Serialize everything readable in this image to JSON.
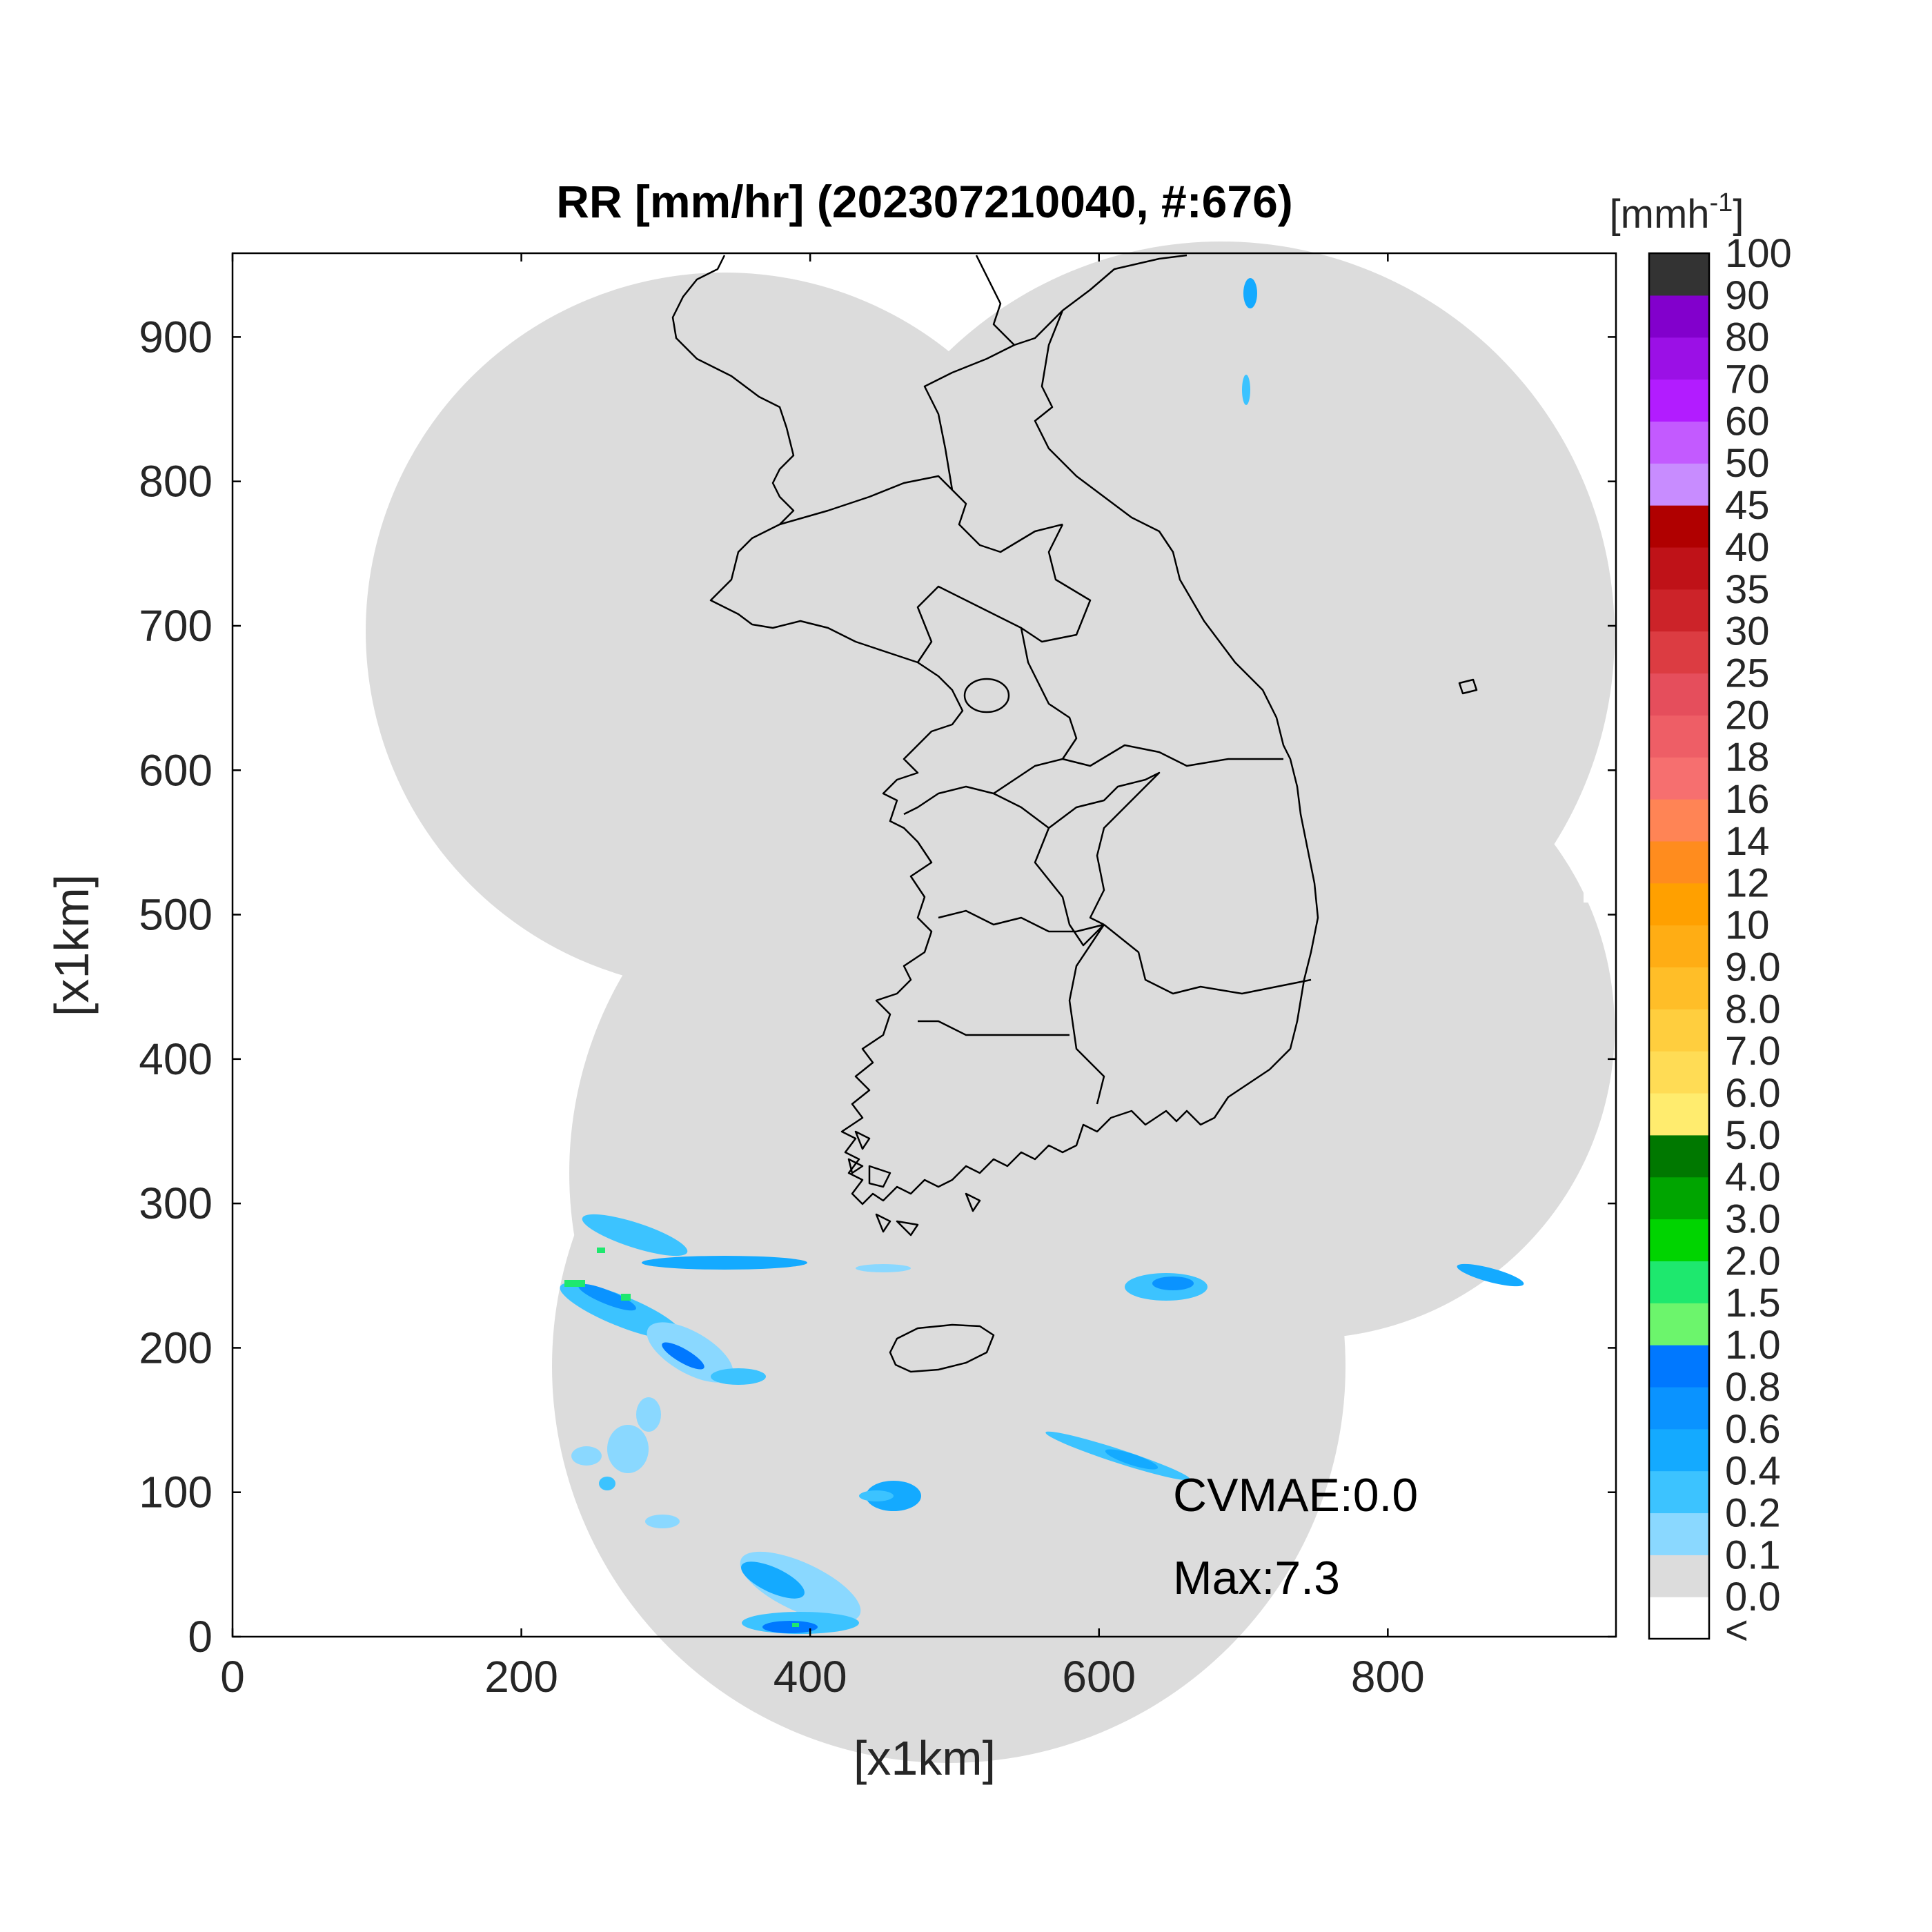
{
  "title": "RR [mm/hr] (202307210040, #:676)",
  "xlabel": "[x1km]",
  "ylabel": "[x1km]",
  "xticks": [
    "0",
    "200",
    "400",
    "600",
    "800"
  ],
  "yticks": [
    "0",
    "100",
    "200",
    "300",
    "400",
    "500",
    "600",
    "700",
    "800",
    "900"
  ],
  "annotations": {
    "cvmae": "CVMAE:0.0",
    "max": "Max:7.3"
  },
  "colorbar": {
    "unit_base": "[mmh",
    "unit_exp": "-1",
    "unit_close": "]",
    "under_label": "<",
    "bins": [
      {
        "label": "0.0",
        "color": "#dcdcdc"
      },
      {
        "label": "0.1",
        "color": "#8ad8ff"
      },
      {
        "label": "0.2",
        "color": "#3cc3ff"
      },
      {
        "label": "0.4",
        "color": "#14aaff"
      },
      {
        "label": "0.6",
        "color": "#0a93ff"
      },
      {
        "label": "0.8",
        "color": "#0078ff"
      },
      {
        "label": "1.0",
        "color": "#6cf56c"
      },
      {
        "label": "1.5",
        "color": "#1ee86e"
      },
      {
        "label": "2.0",
        "color": "#00d400"
      },
      {
        "label": "3.0",
        "color": "#00a500"
      },
      {
        "label": "4.0",
        "color": "#007800"
      },
      {
        "label": "5.0",
        "color": "#ffec6e"
      },
      {
        "label": "6.0",
        "color": "#ffdc55"
      },
      {
        "label": "7.0",
        "color": "#ffce3e"
      },
      {
        "label": "8.0",
        "color": "#ffbe28"
      },
      {
        "label": "9.0",
        "color": "#ffad14"
      },
      {
        "label": "10",
        "color": "#ffa000"
      },
      {
        "label": "12",
        "color": "#ff8c1e"
      },
      {
        "label": "14",
        "color": "#ff8455"
      },
      {
        "label": "16",
        "color": "#f66f6f"
      },
      {
        "label": "18",
        "color": "#ee5e66"
      },
      {
        "label": "20",
        "color": "#e54e5c"
      },
      {
        "label": "25",
        "color": "#dc3c42"
      },
      {
        "label": "30",
        "color": "#cc2329"
      },
      {
        "label": "35",
        "color": "#bf1218"
      },
      {
        "label": "40",
        "color": "#b00000"
      },
      {
        "label": "45",
        "color": "#c88cff"
      },
      {
        "label": "50",
        "color": "#c35aff"
      },
      {
        "label": "60",
        "color": "#b21cff"
      },
      {
        "label": "70",
        "color": "#9b10e6"
      },
      {
        "label": "80",
        "color": "#8200cc"
      },
      {
        "label": "90",
        "color": "#333333"
      },
      {
        "label": "100",
        "color": null
      }
    ]
  },
  "map": {
    "coverage_color": "#dcdcdc",
    "outline_color": "#000000",
    "rain_colors": [
      "#8ad8ff",
      "#3cc3ff",
      "#14aaff",
      "#0a93ff",
      "#0078ff",
      "#1ee86e"
    ]
  }
}
